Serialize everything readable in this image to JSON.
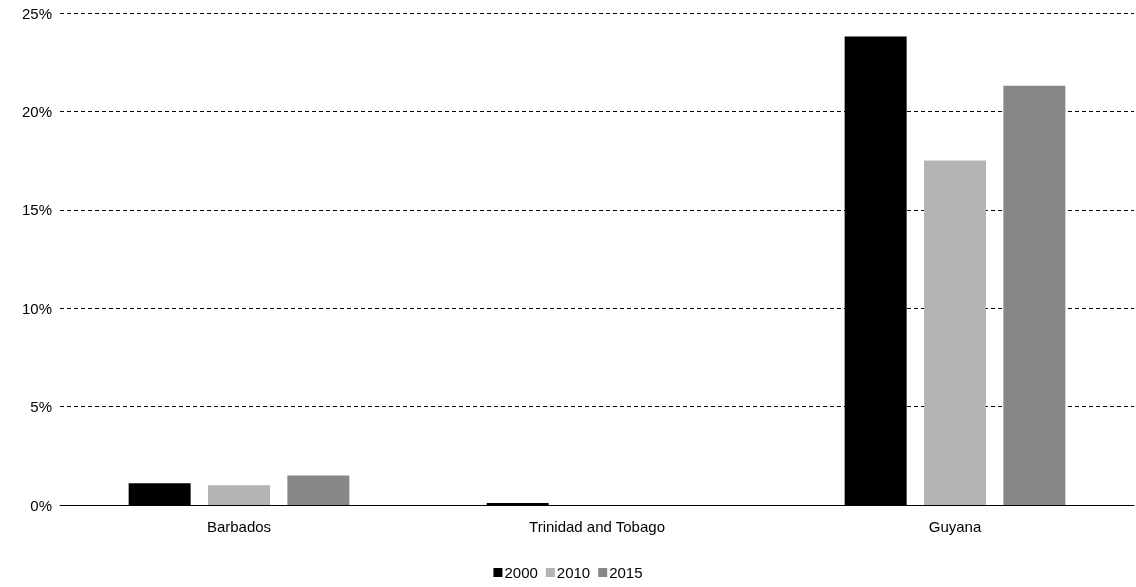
{
  "chart_data": {
    "type": "bar",
    "categories": [
      "Barbados",
      "Trinidad and Tobago",
      "Guyana"
    ],
    "series": [
      {
        "name": "2000",
        "color": "#000000",
        "values": [
          1.1,
          0.1,
          23.8
        ]
      },
      {
        "name": "2010",
        "color": "#b3b3b3",
        "values": [
          1.0,
          0,
          17.5
        ]
      },
      {
        "name": "2015",
        "color": "#878787",
        "values": [
          1.5,
          0,
          21.3
        ]
      }
    ],
    "ylim": [
      0,
      25
    ],
    "yticks": [
      {
        "value": 0,
        "label": "0%"
      },
      {
        "value": 5,
        "label": "5%"
      },
      {
        "value": 10,
        "label": "10%"
      },
      {
        "value": 15,
        "label": "15%"
      },
      {
        "value": 20,
        "label": "20%"
      },
      {
        "value": 25,
        "label": "25%"
      }
    ],
    "grid": "y",
    "legend": "bottom"
  }
}
